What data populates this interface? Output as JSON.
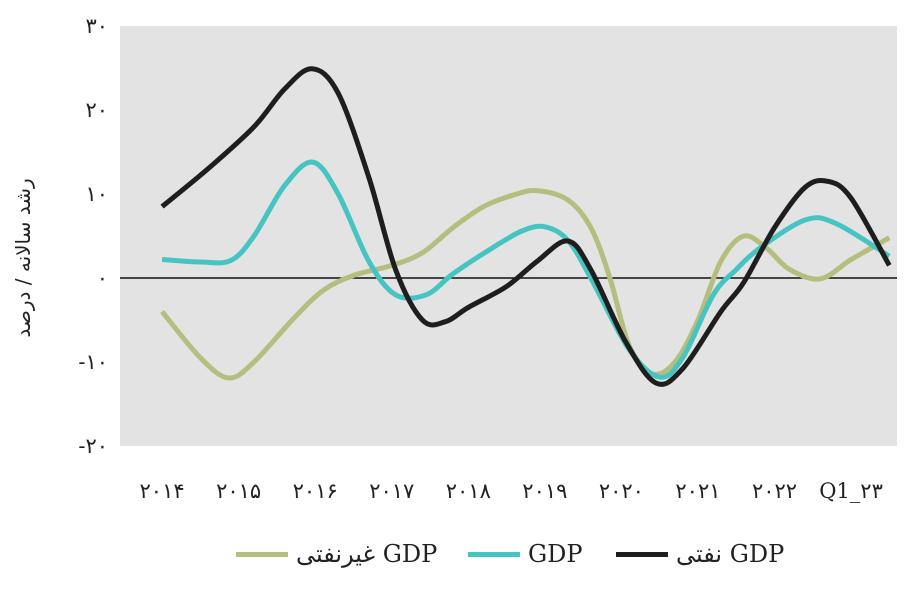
{
  "chart_data": {
    "type": "line",
    "ylabel": "رشد سالانه / درصد",
    "ylim": [
      -20,
      30
    ],
    "y_ticks": [
      30,
      20,
      10,
      0,
      -10,
      -20
    ],
    "y_tick_labels": [
      "۳۰",
      "۲۰",
      "۱۰",
      "۰",
      "-۱۰",
      "-۲۰"
    ],
    "x_tick_labels": [
      "۲۰۱۴",
      "۲۰۱۵",
      "۲۰۱۶",
      "۲۰۱۷",
      "۲۰۱۸",
      "۲۰۱۹",
      "۲۰۲۰",
      "۲۰۲۱",
      "۲۰۲۲",
      "Q1_۲۳"
    ],
    "x_tick_values": [
      0,
      1,
      2,
      3,
      4,
      5,
      6,
      7,
      8,
      9
    ],
    "xlim": [
      -0.55,
      9.6
    ],
    "zero_line": true,
    "plot_background": "#e3e3e3",
    "legend_position": "bottom",
    "series": [
      {
        "name": "GDP غیرنفتی",
        "color": "#b5bd7f",
        "points": [
          [
            0,
            -4
          ],
          [
            0.5,
            -9.5
          ],
          [
            0.87,
            -11.9
          ],
          [
            1.2,
            -10
          ],
          [
            1.7,
            -5
          ],
          [
            2.1,
            -1.5
          ],
          [
            2.5,
            0.3
          ],
          [
            3,
            1.5
          ],
          [
            3.4,
            3
          ],
          [
            3.8,
            6
          ],
          [
            4.2,
            8.5
          ],
          [
            4.6,
            9.9
          ],
          [
            4.9,
            10.4
          ],
          [
            5.3,
            9.3
          ],
          [
            5.6,
            6
          ],
          [
            5.85,
            0
          ],
          [
            6.1,
            -8
          ],
          [
            6.4,
            -11.4
          ],
          [
            6.7,
            -10
          ],
          [
            7,
            -5
          ],
          [
            7.3,
            2
          ],
          [
            7.6,
            5
          ],
          [
            7.9,
            3.5
          ],
          [
            8.2,
            1
          ],
          [
            8.6,
            -0.1
          ],
          [
            9,
            2.2
          ],
          [
            9.5,
            4.8
          ]
        ]
      },
      {
        "name": "GDP",
        "color": "#45c4c1",
        "points": [
          [
            0,
            2.2
          ],
          [
            0.5,
            1.9
          ],
          [
            0.9,
            2.1
          ],
          [
            1.2,
            5
          ],
          [
            1.6,
            11
          ],
          [
            1.97,
            13.8
          ],
          [
            2.3,
            10
          ],
          [
            2.7,
            2
          ],
          [
            3.05,
            -2
          ],
          [
            3.45,
            -2
          ],
          [
            3.8,
            0.5
          ],
          [
            4.3,
            3.5
          ],
          [
            4.7,
            5.6
          ],
          [
            5.0,
            6.1
          ],
          [
            5.3,
            4.5
          ],
          [
            5.6,
            0
          ],
          [
            6.1,
            -8.5
          ],
          [
            6.5,
            -11.8
          ],
          [
            6.8,
            -9.5
          ],
          [
            7.2,
            -2
          ],
          [
            7.5,
            1
          ],
          [
            7.8,
            3.5
          ],
          [
            8.4,
            6.9
          ],
          [
            8.8,
            6.5
          ],
          [
            9.5,
            2.6
          ]
        ]
      },
      {
        "name": "GDP نفتی",
        "color": "#1e1e1e",
        "points": [
          [
            0,
            8.5
          ],
          [
            0.6,
            13
          ],
          [
            1.2,
            18
          ],
          [
            1.6,
            22.5
          ],
          [
            1.96,
            24.9
          ],
          [
            2.3,
            22
          ],
          [
            2.7,
            12
          ],
          [
            3.05,
            1
          ],
          [
            3.4,
            -5
          ],
          [
            3.7,
            -5.2
          ],
          [
            4,
            -3.5
          ],
          [
            4.5,
            -1
          ],
          [
            4.9,
            2
          ],
          [
            5.3,
            4.4
          ],
          [
            5.6,
            1
          ],
          [
            6.05,
            -7.5
          ],
          [
            6.45,
            -12.5
          ],
          [
            6.8,
            -10.8
          ],
          [
            7.3,
            -4
          ],
          [
            7.6,
            -0.5
          ],
          [
            8.0,
            6
          ],
          [
            8.4,
            10.8
          ],
          [
            8.7,
            11.5
          ],
          [
            9.0,
            9.5
          ],
          [
            9.5,
            1.5
          ]
        ]
      }
    ]
  }
}
